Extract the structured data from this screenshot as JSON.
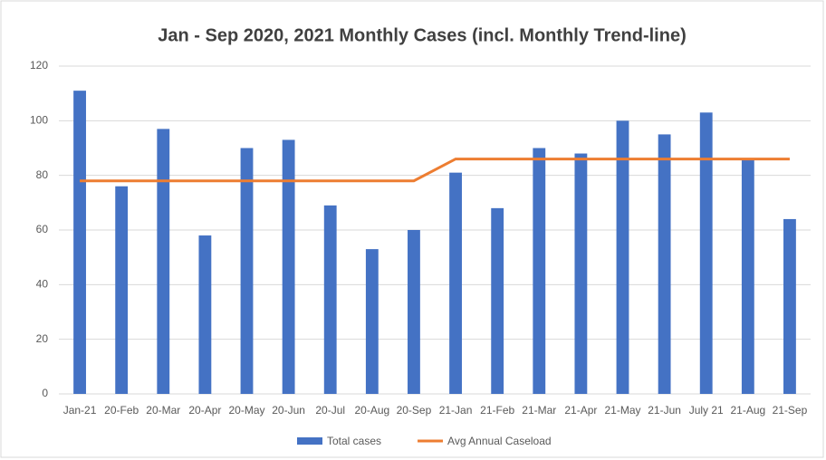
{
  "chart_data": {
    "type": "bar",
    "title": "Jan - Sep 2020, 2021 Monthly Cases (incl. Monthly Trend-line)",
    "categories": [
      "Jan-21",
      "20-Feb",
      "20-Mar",
      "20-Apr",
      "20-May",
      "20-Jun",
      "20-Jul",
      "20-Aug",
      "20-Sep",
      "21-Jan",
      "21-Feb",
      "21-Mar",
      "21-Apr",
      "21-May",
      "21-Jun",
      "July 21",
      "21-Aug",
      "21-Sep"
    ],
    "series": [
      {
        "name": "Total cases",
        "type": "bar",
        "color": "#4472c4",
        "values": [
          111,
          76,
          97,
          58,
          90,
          93,
          69,
          53,
          60,
          81,
          68,
          90,
          88,
          100,
          95,
          103,
          86,
          64
        ]
      },
      {
        "name": "Avg Annual Caseload",
        "type": "line",
        "color": "#ed7d31",
        "values": [
          78,
          78,
          78,
          78,
          78,
          78,
          78,
          78,
          78,
          86,
          86,
          86,
          86,
          86,
          86,
          86,
          86,
          86
        ]
      }
    ],
    "ylim": [
      0,
      120
    ],
    "yticks": [
      0,
      20,
      40,
      60,
      80,
      100,
      120
    ],
    "grid": true,
    "legend": "bottom"
  }
}
